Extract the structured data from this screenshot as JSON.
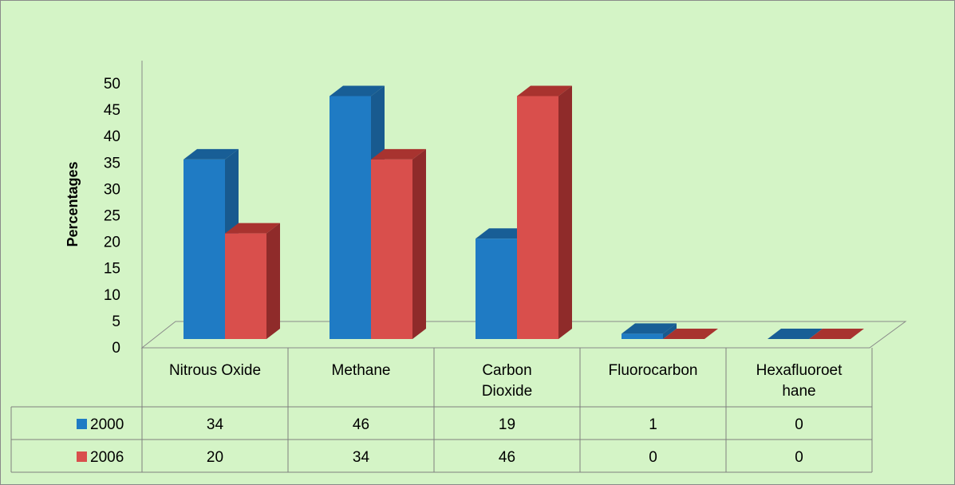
{
  "chart_data": {
    "type": "bar",
    "ylabel": "Percentages",
    "ylim": [
      0,
      50
    ],
    "yticks": [
      0,
      5,
      10,
      15,
      20,
      25,
      30,
      35,
      40,
      45,
      50
    ],
    "categories": [
      [
        "Nitrous Oxide"
      ],
      [
        "Methane"
      ],
      [
        "Carbon",
        "Dioxide"
      ],
      [
        "Fluorocarbon"
      ],
      [
        "Hexafluoroet",
        "hane"
      ]
    ],
    "series": [
      {
        "name": "2000",
        "values": [
          34,
          46,
          19,
          1,
          0
        ]
      },
      {
        "name": "2006",
        "values": [
          20,
          34,
          46,
          0,
          0
        ]
      }
    ],
    "colors": {
      "2000": {
        "front": "#1f7bc4",
        "side": "#185a8f",
        "top": "#185e96"
      },
      "2006": {
        "front": "#d94f4c",
        "side": "#8f2b2a",
        "top": "#a8332f"
      },
      "plot_background": "#d4f4c6",
      "frame": "#8a8a8a"
    },
    "legend": "data-table",
    "view": "3d-clustered",
    "grid": false
  }
}
